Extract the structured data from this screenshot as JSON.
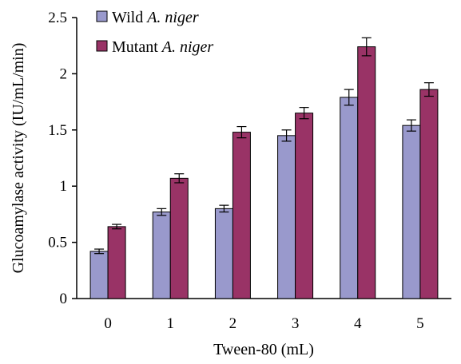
{
  "chart_data": {
    "type": "bar",
    "title": "",
    "xlabel": "Tween-80 (mL)",
    "ylabel": "Glucoamylase activity (IU/mL/min)",
    "categories": [
      "0",
      "1",
      "2",
      "3",
      "4",
      "5"
    ],
    "ylim": [
      0,
      2.5
    ],
    "yticks": [
      "0",
      "0.5",
      "1",
      "1.5",
      "2",
      "2.5"
    ],
    "grid": false,
    "legend_position": "top-left",
    "series": [
      {
        "name": "Wild",
        "name_italic": "A. niger",
        "color": "#9999cc",
        "values": [
          0.42,
          0.77,
          0.8,
          1.45,
          1.79,
          1.54
        ],
        "errors": [
          0.02,
          0.03,
          0.03,
          0.05,
          0.07,
          0.05
        ]
      },
      {
        "name": "Mutant",
        "name_italic": "A. niger",
        "color": "#993366",
        "values": [
          0.64,
          1.07,
          1.48,
          1.65,
          2.24,
          1.86
        ],
        "errors": [
          0.02,
          0.04,
          0.05,
          0.05,
          0.08,
          0.06
        ]
      }
    ]
  }
}
